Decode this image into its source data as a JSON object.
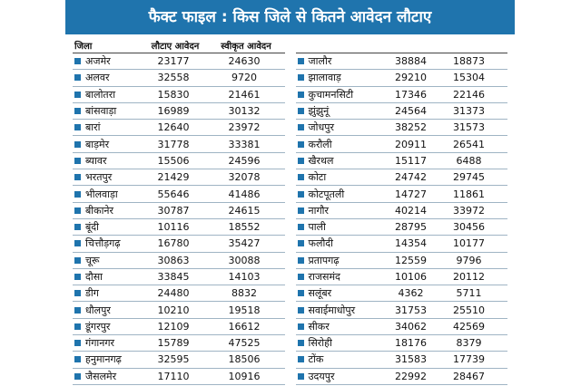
{
  "title": "फैक्ट फाइल : किस जिले से कितने आवेदन लौटाए",
  "headers": {
    "district": "जिला",
    "returned": "लौटाए आवेदन",
    "approved": "स्वीकृत आवेदन"
  },
  "colors": {
    "accent": "#1f74ad"
  },
  "left_rows": [
    {
      "name": "अजमेर",
      "returned": "23177",
      "approved": "24630"
    },
    {
      "name": "अलवर",
      "returned": "32558",
      "approved": "9720"
    },
    {
      "name": "बालोतरा",
      "returned": "15830",
      "approved": "21461"
    },
    {
      "name": "बांसवाड़ा",
      "returned": "16989",
      "approved": "30132"
    },
    {
      "name": "बारां",
      "returned": "12640",
      "approved": "23972"
    },
    {
      "name": "बाड़मेर",
      "returned": "31778",
      "approved": "33381"
    },
    {
      "name": "ब्यावर",
      "returned": "15506",
      "approved": "24596"
    },
    {
      "name": "भरतपुर",
      "returned": "21429",
      "approved": "32078"
    },
    {
      "name": "भीलवाड़ा",
      "returned": "55646",
      "approved": "41486"
    },
    {
      "name": "बीकानेर",
      "returned": "30787",
      "approved": "24615"
    },
    {
      "name": "बूंदी",
      "returned": "10116",
      "approved": "18552"
    },
    {
      "name": "चित्तौड़गढ़",
      "returned": "16780",
      "approved": "35427"
    },
    {
      "name": "चूरू",
      "returned": "30863",
      "approved": "30088"
    },
    {
      "name": "दौसा",
      "returned": "33845",
      "approved": "14103"
    },
    {
      "name": "डीग",
      "returned": "24480",
      "approved": "8832"
    },
    {
      "name": "धौलपुर",
      "returned": "10210",
      "approved": "19518"
    },
    {
      "name": "डूंगरपुर",
      "returned": "12109",
      "approved": "16612"
    },
    {
      "name": "गंगानगर",
      "returned": "15789",
      "approved": "47525"
    },
    {
      "name": "हनुमानगढ़",
      "returned": "32595",
      "approved": "18506"
    },
    {
      "name": "जैसलमेर",
      "returned": "17110",
      "approved": "10916"
    }
  ],
  "right_rows": [
    {
      "name": "जालौर",
      "returned": "38884",
      "approved": "18873"
    },
    {
      "name": "झालावाड़",
      "returned": "29210",
      "approved": "15304"
    },
    {
      "name": "कुचामनसिटी",
      "returned": "17346",
      "approved": "22146"
    },
    {
      "name": "झुंझुनूं",
      "returned": "24564",
      "approved": "31373"
    },
    {
      "name": "जोधपुर",
      "returned": "38252",
      "approved": "31573"
    },
    {
      "name": "करौली",
      "returned": "20911",
      "approved": "26541"
    },
    {
      "name": "खैरथल",
      "returned": "15117",
      "approved": "6488"
    },
    {
      "name": "कोटा",
      "returned": "24742",
      "approved": "29745"
    },
    {
      "name": "कोटपूतली",
      "returned": "14727",
      "approved": "11861"
    },
    {
      "name": "नागौर",
      "returned": "40214",
      "approved": "33972"
    },
    {
      "name": "पाली",
      "returned": "28795",
      "approved": "30456"
    },
    {
      "name": "फलौदी",
      "returned": "14354",
      "approved": "10177"
    },
    {
      "name": "प्रतापगढ़",
      "returned": "12559",
      "approved": "9796"
    },
    {
      "name": "राजसमंद",
      "returned": "10106",
      "approved": "20112"
    },
    {
      "name": "सलूंबर",
      "returned": "4362",
      "approved": "5711"
    },
    {
      "name": "सवाईमाधोपुर",
      "returned": "31753",
      "approved": "25510"
    },
    {
      "name": "सीकर",
      "returned": "34062",
      "approved": "42569"
    },
    {
      "name": "सिरोही",
      "returned": "18176",
      "approved": "8379"
    },
    {
      "name": "टोंक",
      "returned": "31583",
      "approved": "17739"
    },
    {
      "name": "उदयपुर",
      "returned": "22992",
      "approved": "28467"
    }
  ]
}
